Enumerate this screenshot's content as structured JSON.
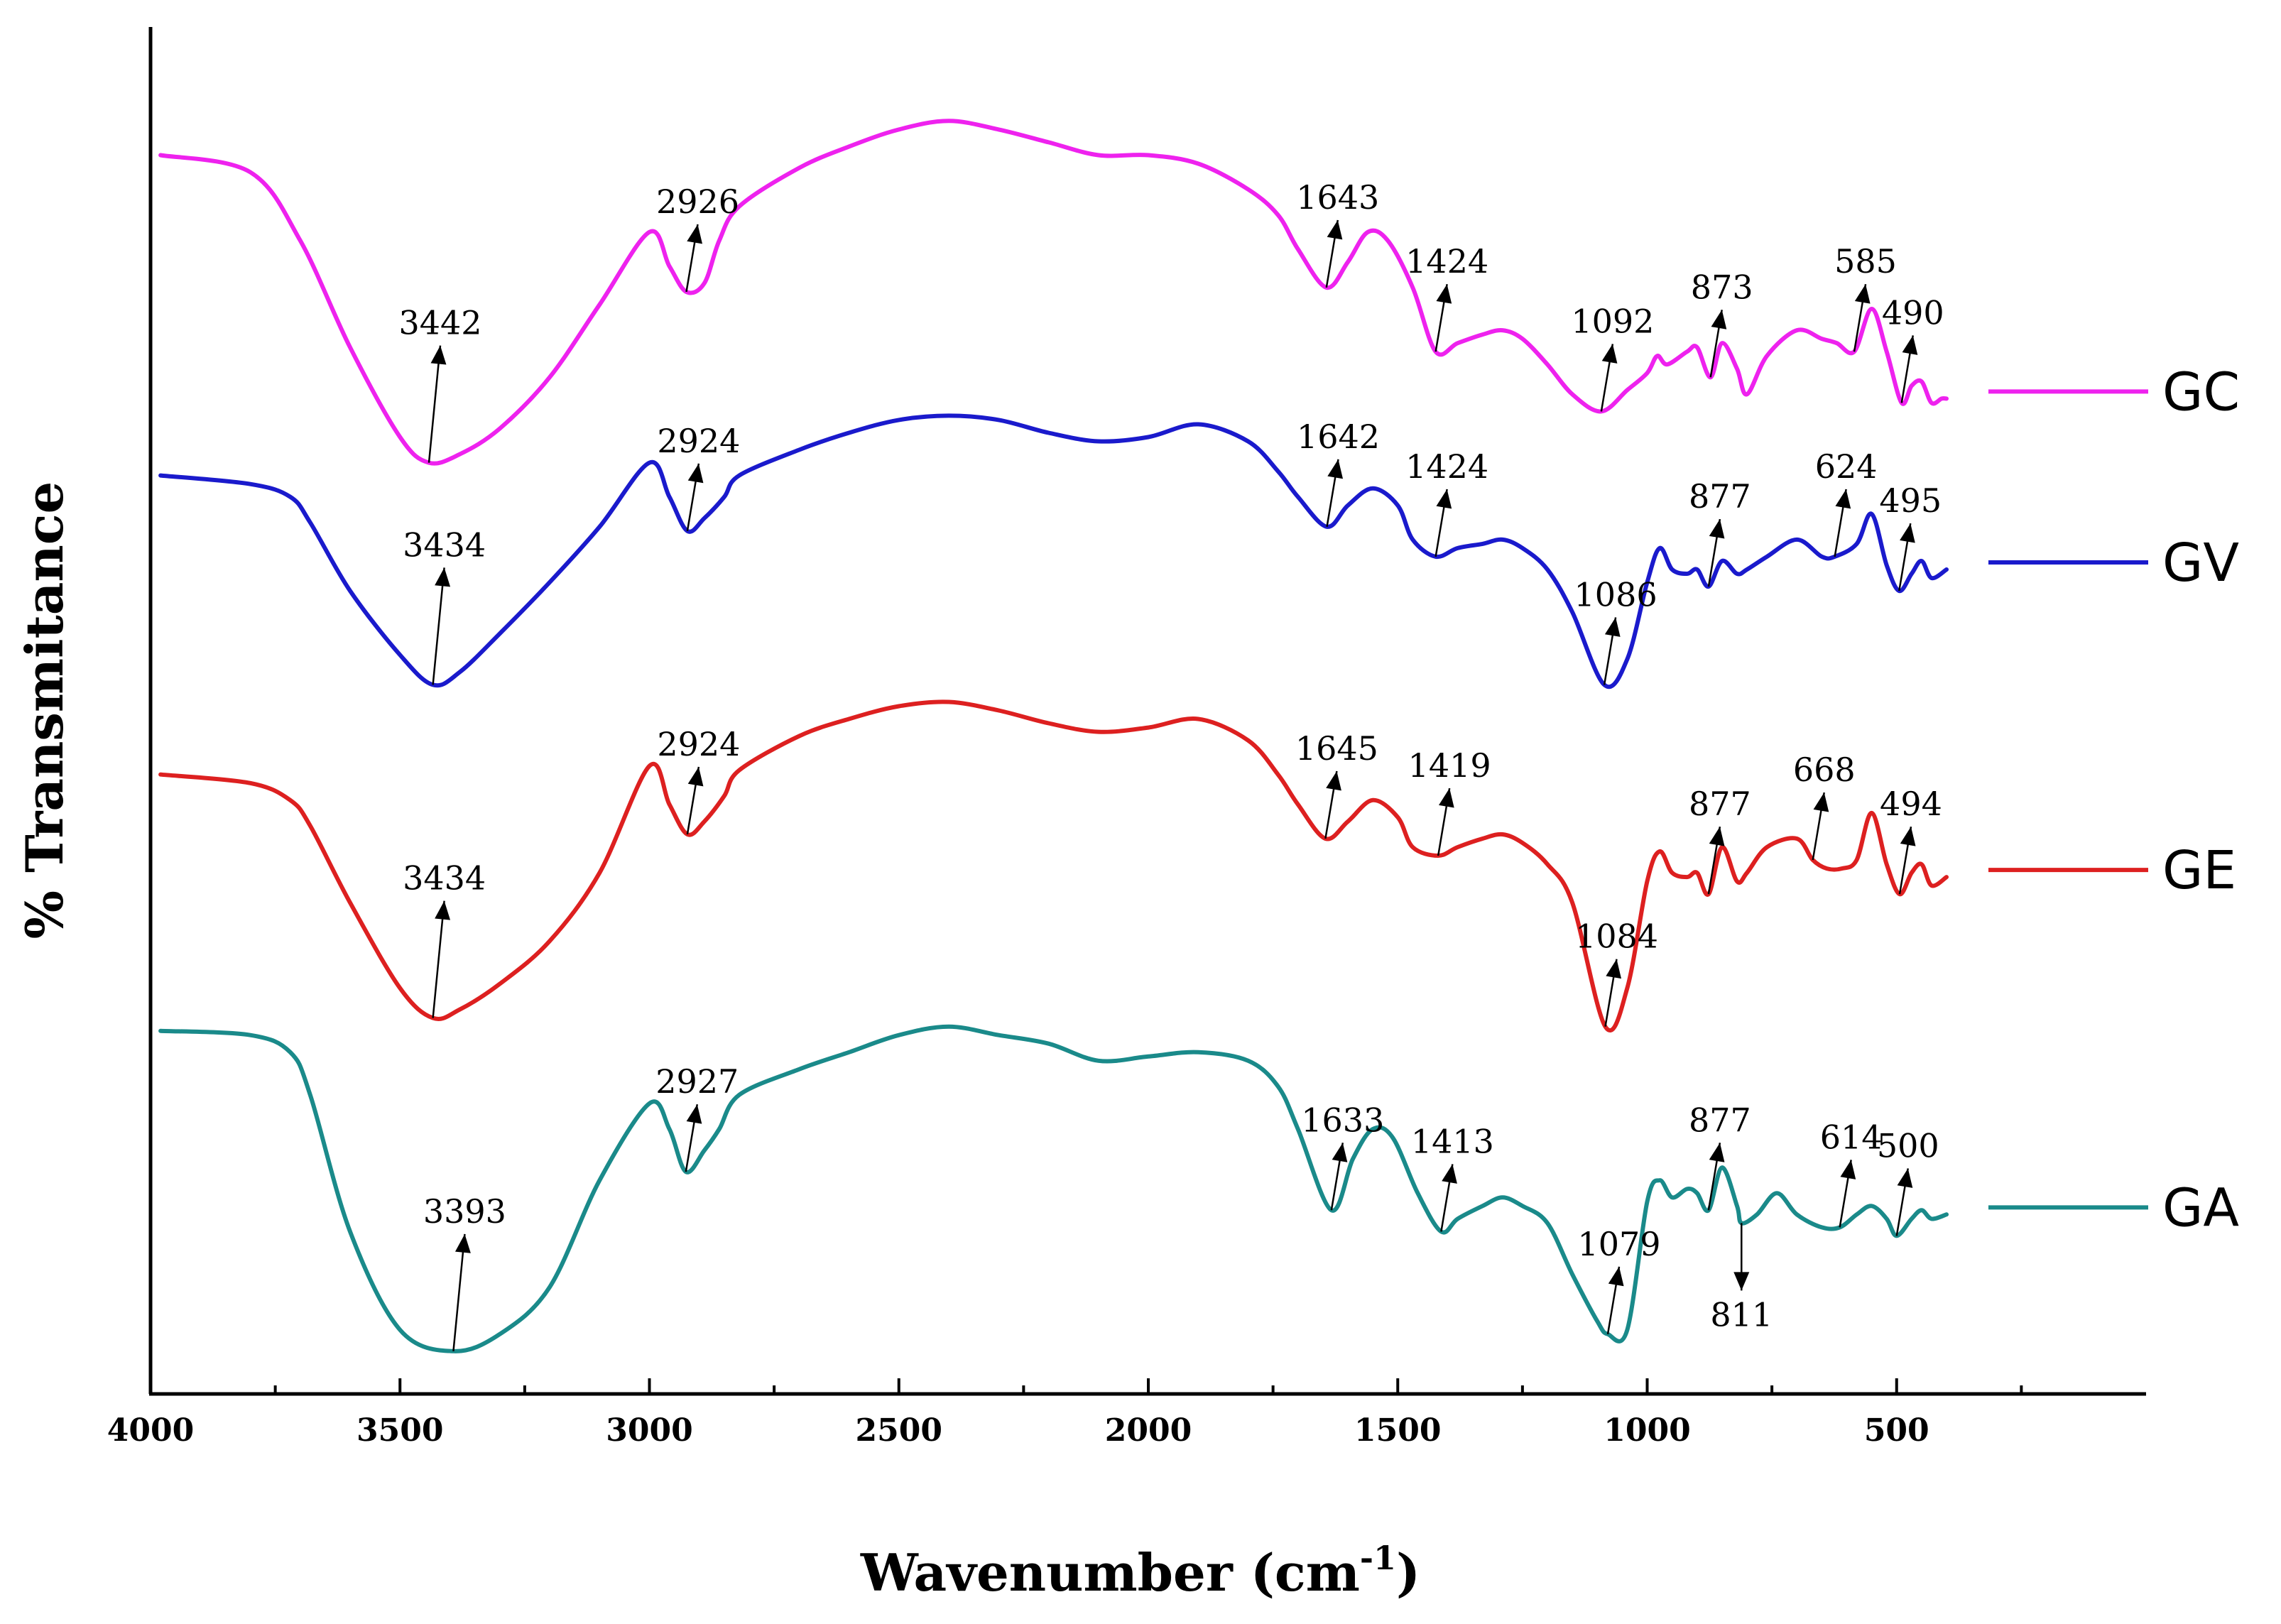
{
  "chart_data": {
    "type": "line",
    "title": "",
    "xlabel": "Wavenumber (cm",
    "xlabel_superscript": "-1",
    "xlabel_close": ")",
    "ylabel": "% Transmitance",
    "xlim": [
      4000,
      0
    ],
    "x_ticks": [
      4000,
      3500,
      3000,
      2500,
      2000,
      1500,
      1000,
      500
    ],
    "x_tick_labels": [
      "4000",
      "3500",
      "3000",
      "2500",
      "2000",
      "1500",
      "1000",
      "500"
    ],
    "y_units": "arbitrary (curves stacked, offset)",
    "series": [
      {
        "name": "GC",
        "color": "#ee22ee",
        "points": [
          [
            3980,
            2.9
          ],
          [
            3800,
            2.86
          ],
          [
            3700,
            2.7
          ],
          [
            3600,
            2.45
          ],
          [
            3500,
            2.24
          ],
          [
            3442,
            2.18
          ],
          [
            3380,
            2.2
          ],
          [
            3300,
            2.26
          ],
          [
            3200,
            2.38
          ],
          [
            3100,
            2.55
          ],
          [
            3000,
            2.72
          ],
          [
            2960,
            2.64
          ],
          [
            2926,
            2.58
          ],
          [
            2890,
            2.6
          ],
          [
            2860,
            2.7
          ],
          [
            2820,
            2.78
          ],
          [
            2700,
            2.87
          ],
          [
            2600,
            2.92
          ],
          [
            2500,
            2.96
          ],
          [
            2400,
            2.98
          ],
          [
            2300,
            2.96
          ],
          [
            2200,
            2.93
          ],
          [
            2100,
            2.9
          ],
          [
            2000,
            2.9
          ],
          [
            1900,
            2.88
          ],
          [
            1800,
            2.82
          ],
          [
            1740,
            2.76
          ],
          [
            1700,
            2.68
          ],
          [
            1643,
            2.59
          ],
          [
            1600,
            2.65
          ],
          [
            1560,
            2.72
          ],
          [
            1520,
            2.7
          ],
          [
            1470,
            2.59
          ],
          [
            1424,
            2.44
          ],
          [
            1380,
            2.46
          ],
          [
            1330,
            2.48
          ],
          [
            1290,
            2.49
          ],
          [
            1250,
            2.47
          ],
          [
            1200,
            2.41
          ],
          [
            1150,
            2.34
          ],
          [
            1092,
            2.3
          ],
          [
            1040,
            2.35
          ],
          [
            1000,
            2.39
          ],
          [
            980,
            2.43
          ],
          [
            960,
            2.41
          ],
          [
            920,
            2.44
          ],
          [
            900,
            2.45
          ],
          [
            873,
            2.38
          ],
          [
            850,
            2.46
          ],
          [
            820,
            2.4
          ],
          [
            800,
            2.34
          ],
          [
            760,
            2.43
          ],
          [
            700,
            2.49
          ],
          [
            650,
            2.47
          ],
          [
            620,
            2.46
          ],
          [
            585,
            2.44
          ],
          [
            550,
            2.54
          ],
          [
            520,
            2.44
          ],
          [
            490,
            2.32
          ],
          [
            470,
            2.36
          ],
          [
            450,
            2.37
          ],
          [
            430,
            2.32
          ],
          [
            410,
            2.33
          ],
          [
            400,
            2.33
          ]
        ],
        "peaks": [
          3442,
          2926,
          1643,
          1424,
          1092,
          873,
          585,
          490
        ]
      },
      {
        "name": "GV",
        "color": "#1a1acc",
        "points": [
          [
            3980,
            2.15
          ],
          [
            3800,
            2.13
          ],
          [
            3720,
            2.1
          ],
          [
            3680,
            2.04
          ],
          [
            3600,
            1.88
          ],
          [
            3500,
            1.73
          ],
          [
            3434,
            1.66
          ],
          [
            3380,
            1.69
          ],
          [
            3300,
            1.78
          ],
          [
            3200,
            1.9
          ],
          [
            3100,
            2.03
          ],
          [
            3000,
            2.18
          ],
          [
            2960,
            2.1
          ],
          [
            2924,
            2.02
          ],
          [
            2890,
            2.05
          ],
          [
            2850,
            2.1
          ],
          [
            2820,
            2.15
          ],
          [
            2700,
            2.21
          ],
          [
            2600,
            2.25
          ],
          [
            2500,
            2.28
          ],
          [
            2400,
            2.29
          ],
          [
            2300,
            2.28
          ],
          [
            2200,
            2.25
          ],
          [
            2100,
            2.23
          ],
          [
            2000,
            2.24
          ],
          [
            1900,
            2.27
          ],
          [
            1800,
            2.23
          ],
          [
            1740,
            2.16
          ],
          [
            1700,
            2.1
          ],
          [
            1642,
            2.03
          ],
          [
            1600,
            2.08
          ],
          [
            1550,
            2.12
          ],
          [
            1500,
            2.08
          ],
          [
            1470,
            2.0
          ],
          [
            1424,
            1.96
          ],
          [
            1380,
            1.98
          ],
          [
            1330,
            1.99
          ],
          [
            1290,
            2.0
          ],
          [
            1250,
            1.98
          ],
          [
            1200,
            1.93
          ],
          [
            1150,
            1.83
          ],
          [
            1086,
            1.66
          ],
          [
            1040,
            1.72
          ],
          [
            1000,
            1.9
          ],
          [
            975,
            1.98
          ],
          [
            950,
            1.93
          ],
          [
            920,
            1.92
          ],
          [
            900,
            1.93
          ],
          [
            877,
            1.89
          ],
          [
            850,
            1.95
          ],
          [
            820,
            1.92
          ],
          [
            800,
            1.93
          ],
          [
            760,
            1.96
          ],
          [
            700,
            2.0
          ],
          [
            650,
            1.96
          ],
          [
            624,
            1.96
          ],
          [
            580,
            1.99
          ],
          [
            550,
            2.06
          ],
          [
            520,
            1.94
          ],
          [
            495,
            1.88
          ],
          [
            470,
            1.92
          ],
          [
            450,
            1.95
          ],
          [
            430,
            1.91
          ],
          [
            400,
            1.93
          ]
        ],
        "peaks": [
          3434,
          2924,
          1642,
          1424,
          1086,
          877,
          624,
          495
        ]
      },
      {
        "name": "GE",
        "color": "#dd2020",
        "points": [
          [
            3980,
            1.45
          ],
          [
            3800,
            1.43
          ],
          [
            3720,
            1.39
          ],
          [
            3680,
            1.33
          ],
          [
            3600,
            1.15
          ],
          [
            3500,
            0.95
          ],
          [
            3434,
            0.88
          ],
          [
            3380,
            0.9
          ],
          [
            3300,
            0.96
          ],
          [
            3200,
            1.06
          ],
          [
            3100,
            1.22
          ],
          [
            3000,
            1.47
          ],
          [
            2960,
            1.38
          ],
          [
            2924,
            1.31
          ],
          [
            2890,
            1.34
          ],
          [
            2850,
            1.4
          ],
          [
            2820,
            1.46
          ],
          [
            2700,
            1.54
          ],
          [
            2600,
            1.58
          ],
          [
            2500,
            1.61
          ],
          [
            2400,
            1.62
          ],
          [
            2300,
            1.6
          ],
          [
            2200,
            1.57
          ],
          [
            2100,
            1.55
          ],
          [
            2000,
            1.56
          ],
          [
            1900,
            1.58
          ],
          [
            1800,
            1.53
          ],
          [
            1740,
            1.45
          ],
          [
            1700,
            1.38
          ],
          [
            1645,
            1.3
          ],
          [
            1600,
            1.34
          ],
          [
            1550,
            1.39
          ],
          [
            1500,
            1.35
          ],
          [
            1470,
            1.28
          ],
          [
            1419,
            1.26
          ],
          [
            1380,
            1.28
          ],
          [
            1330,
            1.3
          ],
          [
            1290,
            1.31
          ],
          [
            1250,
            1.29
          ],
          [
            1200,
            1.24
          ],
          [
            1150,
            1.15
          ],
          [
            1084,
            0.86
          ],
          [
            1040,
            0.95
          ],
          [
            1000,
            1.2
          ],
          [
            975,
            1.27
          ],
          [
            950,
            1.22
          ],
          [
            920,
            1.21
          ],
          [
            900,
            1.22
          ],
          [
            877,
            1.17
          ],
          [
            850,
            1.28
          ],
          [
            820,
            1.2
          ],
          [
            800,
            1.22
          ],
          [
            760,
            1.28
          ],
          [
            700,
            1.3
          ],
          [
            668,
            1.25
          ],
          [
            640,
            1.23
          ],
          [
            610,
            1.23
          ],
          [
            580,
            1.25
          ],
          [
            550,
            1.36
          ],
          [
            520,
            1.24
          ],
          [
            494,
            1.17
          ],
          [
            470,
            1.22
          ],
          [
            450,
            1.24
          ],
          [
            430,
            1.19
          ],
          [
            400,
            1.21
          ]
        ],
        "peaks": [
          3434,
          2924,
          1645,
          1419,
          1084,
          877,
          668,
          494
        ]
      },
      {
        "name": "GA",
        "color": "#1a8a8a",
        "points": [
          [
            3980,
            0.85
          ],
          [
            3800,
            0.84
          ],
          [
            3720,
            0.8
          ],
          [
            3680,
            0.7
          ],
          [
            3600,
            0.38
          ],
          [
            3500,
            0.15
          ],
          [
            3393,
            0.1
          ],
          [
            3300,
            0.14
          ],
          [
            3200,
            0.25
          ],
          [
            3100,
            0.5
          ],
          [
            3000,
            0.68
          ],
          [
            2960,
            0.62
          ],
          [
            2927,
            0.52
          ],
          [
            2890,
            0.57
          ],
          [
            2860,
            0.62
          ],
          [
            2820,
            0.7
          ],
          [
            2700,
            0.76
          ],
          [
            2600,
            0.8
          ],
          [
            2500,
            0.84
          ],
          [
            2400,
            0.86
          ],
          [
            2300,
            0.84
          ],
          [
            2200,
            0.82
          ],
          [
            2100,
            0.78
          ],
          [
            2000,
            0.79
          ],
          [
            1900,
            0.8
          ],
          [
            1800,
            0.78
          ],
          [
            1740,
            0.72
          ],
          [
            1700,
            0.62
          ],
          [
            1633,
            0.43
          ],
          [
            1590,
            0.55
          ],
          [
            1550,
            0.62
          ],
          [
            1510,
            0.6
          ],
          [
            1460,
            0.47
          ],
          [
            1413,
            0.38
          ],
          [
            1380,
            0.41
          ],
          [
            1330,
            0.44
          ],
          [
            1290,
            0.46
          ],
          [
            1250,
            0.44
          ],
          [
            1200,
            0.4
          ],
          [
            1150,
            0.28
          ],
          [
            1100,
            0.17
          ],
          [
            1079,
            0.14
          ],
          [
            1040,
            0.15
          ],
          [
            1000,
            0.45
          ],
          [
            975,
            0.5
          ],
          [
            950,
            0.46
          ],
          [
            920,
            0.48
          ],
          [
            900,
            0.47
          ],
          [
            877,
            0.43
          ],
          [
            850,
            0.53
          ],
          [
            820,
            0.44
          ],
          [
            811,
            0.4
          ],
          [
            780,
            0.42
          ],
          [
            740,
            0.47
          ],
          [
            700,
            0.42
          ],
          [
            650,
            0.39
          ],
          [
            614,
            0.39
          ],
          [
            580,
            0.42
          ],
          [
            550,
            0.44
          ],
          [
            520,
            0.41
          ],
          [
            500,
            0.37
          ],
          [
            470,
            0.41
          ],
          [
            450,
            0.43
          ],
          [
            430,
            0.41
          ],
          [
            400,
            0.42
          ]
        ],
        "peaks": [
          3393,
          2927,
          1633,
          1413,
          1079,
          877,
          811,
          614,
          500
        ]
      }
    ],
    "annotations": [
      {
        "series": "GC",
        "label": "3442"
      },
      {
        "series": "GC",
        "label": "2926"
      },
      {
        "series": "GC",
        "label": "1643"
      },
      {
        "series": "GC",
        "label": "1424"
      },
      {
        "series": "GC",
        "label": "1092"
      },
      {
        "series": "GC",
        "label": "873"
      },
      {
        "series": "GC",
        "label": "585"
      },
      {
        "series": "GC",
        "label": "490"
      },
      {
        "series": "GV",
        "label": "3434"
      },
      {
        "series": "GV",
        "label": "2924"
      },
      {
        "series": "GV",
        "label": "1642"
      },
      {
        "series": "GV",
        "label": "1424"
      },
      {
        "series": "GV",
        "label": "1086"
      },
      {
        "series": "GV",
        "label": "877"
      },
      {
        "series": "GV",
        "label": "624"
      },
      {
        "series": "GV",
        "label": "495"
      },
      {
        "series": "GE",
        "label": "3434"
      },
      {
        "series": "GE",
        "label": "2924"
      },
      {
        "series": "GE",
        "label": "1645"
      },
      {
        "series": "GE",
        "label": "1419"
      },
      {
        "series": "GE",
        "label": "1084"
      },
      {
        "series": "GE",
        "label": "877"
      },
      {
        "series": "GE",
        "label": "668"
      },
      {
        "series": "GE",
        "label": "494"
      },
      {
        "series": "GA",
        "label": "3393"
      },
      {
        "series": "GA",
        "label": "2927"
      },
      {
        "series": "GA",
        "label": "1633"
      },
      {
        "series": "GA",
        "label": "1413"
      },
      {
        "series": "GA",
        "label": "1079"
      },
      {
        "series": "GA",
        "label": "877"
      },
      {
        "series": "GA",
        "label": "811"
      },
      {
        "series": "GA",
        "label": "614"
      },
      {
        "series": "GA",
        "label": "500"
      }
    ],
    "legend": [
      "GC",
      "GV",
      "GE",
      "GA"
    ],
    "legend_placement": "right"
  }
}
